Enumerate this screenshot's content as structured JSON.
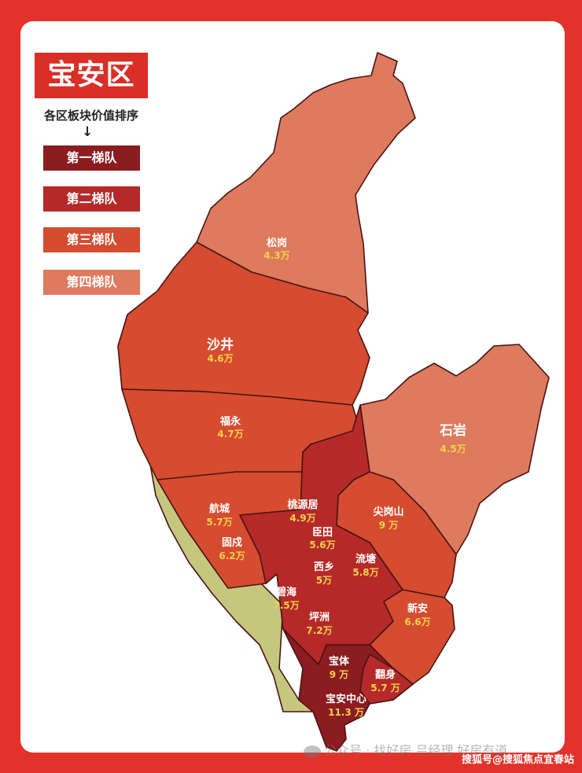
{
  "title": "宝安区",
  "subtitle": "各区板块价值排序",
  "arrow": "↓",
  "legend": [
    {
      "label": "第一梯队",
      "color": "#8b1c1f"
    },
    {
      "label": "第二梯队",
      "color": "#b52a28"
    },
    {
      "label": "第三梯队",
      "color": "#d54c30"
    },
    {
      "label": "第四梯队",
      "color": "#de7a5e"
    }
  ],
  "districts": [
    {
      "name": "松岗",
      "price": "4.3万"
    },
    {
      "name": "沙井",
      "price": "4.6万"
    },
    {
      "name": "福永",
      "price": "4.7万"
    },
    {
      "name": "石岩",
      "price": "4.5万"
    },
    {
      "name": "航城",
      "price": "5.7万"
    },
    {
      "name": "固戍",
      "price": "6.2万"
    },
    {
      "name": "桃源居",
      "price": "4.9万"
    },
    {
      "name": "臣田",
      "price": "5.6万"
    },
    {
      "name": "西乡",
      "price": "5万"
    },
    {
      "name": "流塘",
      "price": "5.8万"
    },
    {
      "name": "尖岗山",
      "price": "9 万"
    },
    {
      "name": "碧海",
      "price": "7.5万"
    },
    {
      "name": "坪洲",
      "price": "7.2万"
    },
    {
      "name": "新安",
      "price": "6.6万"
    },
    {
      "name": "宝体",
      "price": "9 万"
    },
    {
      "name": "翻身",
      "price": "5.7 万"
    },
    {
      "name": "宝安中心",
      "price": "11.3 万"
    }
  ],
  "colors": {
    "frame": "#e2322a",
    "coast": "#c6c77e",
    "price_text": "#f5d24a"
  },
  "watermark": "公众号 · 找好房 吕经理 好房有道",
  "source": "搜狐号@搜狐焦点宜春站"
}
